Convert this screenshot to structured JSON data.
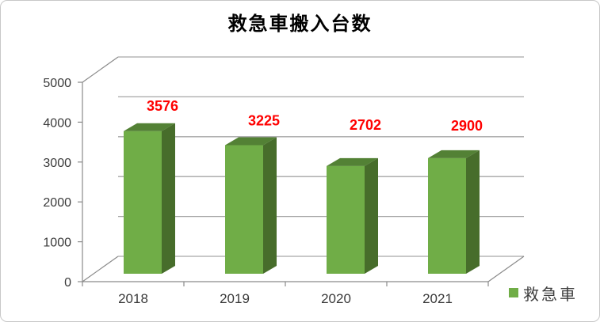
{
  "chart_data": {
    "type": "bar",
    "variant": "3d-column",
    "title": "救急車搬入台数",
    "categories": [
      "2018",
      "2019",
      "2020",
      "2021"
    ],
    "series": [
      {
        "name": "救急車",
        "values": [
          3576,
          3225,
          2702,
          2900
        ]
      }
    ],
    "ylim": [
      0,
      5000
    ],
    "ytick_step": 1000,
    "yticks": [
      "0",
      "1000",
      "2000",
      "3000",
      "4000",
      "5000"
    ],
    "grid": true,
    "legend_position": "bottom-right",
    "colors": {
      "bar_front": "#70AD47",
      "bar_top": "#538135",
      "bar_side": "#476D2B",
      "data_label": "#FF0000",
      "gridline": "#A6A6A6",
      "axis_line": "#8A8A8A",
      "tick_label": "#3A3A3A",
      "title": "#000000",
      "border": "#C8C8C8",
      "background": "#FFFFFF"
    }
  }
}
